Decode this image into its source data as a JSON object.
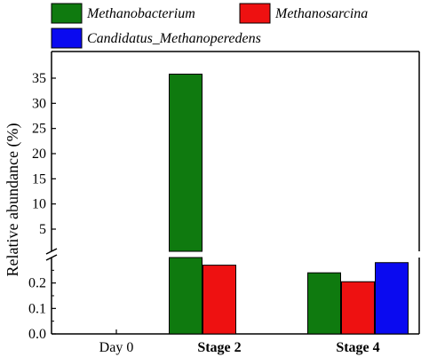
{
  "chart_data": {
    "type": "bar",
    "ylabel": "Relative abundance (%)",
    "categories": [
      "Day 0",
      "Stage 2",
      "Stage 4"
    ],
    "category_bold": [
      false,
      true,
      true
    ],
    "series": [
      {
        "name": "Methanobacterium",
        "color": "#0f7a0f",
        "values": [
          0,
          35.8,
          0.24
        ]
      },
      {
        "name": "Methanosarcina",
        "color": "#ee1111",
        "values": [
          0,
          0.27,
          0.205
        ]
      },
      {
        "name": "Candidatus_Methanoperedens",
        "color": "#0a0af0",
        "values": [
          0,
          0,
          0.28
        ]
      }
    ],
    "y_axis_break": true,
    "lower_segment": {
      "ylim": [
        0,
        0.3
      ],
      "ticks": [
        "0.0",
        "0.1",
        "0.2"
      ]
    },
    "upper_segment": {
      "ylim": [
        0,
        38
      ],
      "ticks": [
        "5",
        "10",
        "15",
        "20",
        "25",
        "30",
        "35"
      ]
    },
    "legend_position": "top"
  }
}
